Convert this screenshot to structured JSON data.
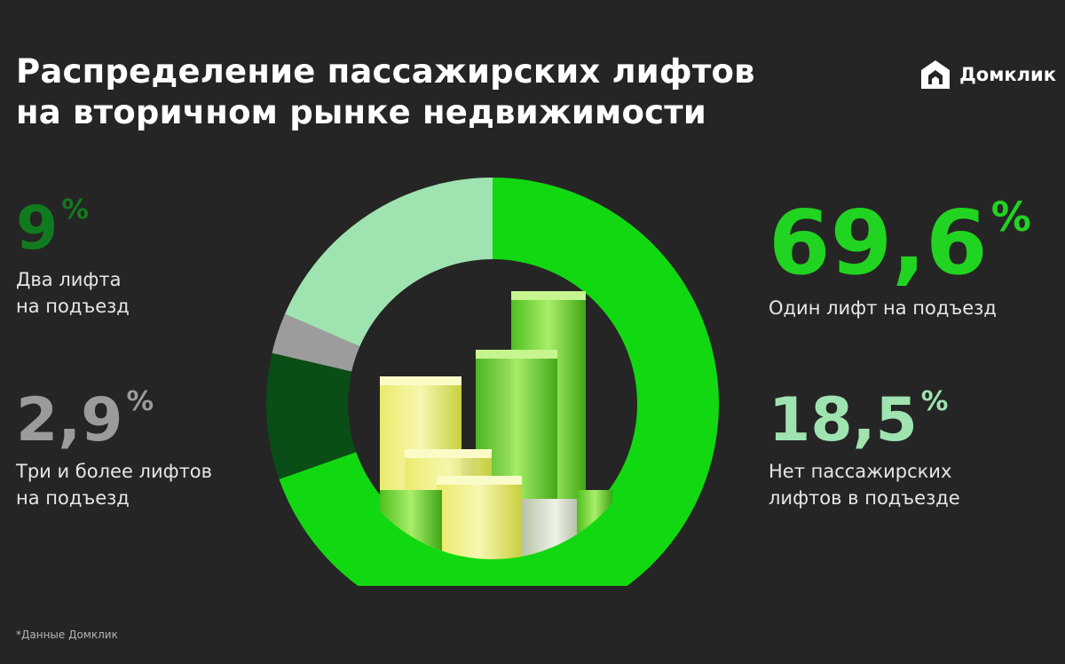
{
  "title_lines": [
    "Распределение пассажирских лифтов",
    "на вторичном рынке недвижимости"
  ],
  "brand": {
    "name": "Домклик",
    "logo_icon": "house-icon",
    "color": "#ffffff"
  },
  "stats": {
    "one": {
      "value": "69,6",
      "unit": "%",
      "label_lines": [
        "Один лифт на подъезд"
      ]
    },
    "none": {
      "value": "18,5",
      "unit": "%",
      "label_lines": [
        "Нет пассажирских",
        "лифтов в подъезде"
      ]
    },
    "two": {
      "value": "9",
      "unit": "%",
      "label_lines": [
        "Два лифта",
        "на подъезд"
      ]
    },
    "three": {
      "value": "2,9",
      "unit": "%",
      "label_lines": [
        "Три и более лифтов",
        "на подъезд"
      ]
    }
  },
  "footnote": "*Данные Домклик",
  "chart_data": {
    "type": "pie",
    "variant": "donut",
    "start": "top",
    "direction": "clockwise",
    "slices": [
      {
        "label": "Один лифт на подъезд",
        "value": 69.6,
        "color": "#12d812"
      },
      {
        "label": "Два лифта на подъезд",
        "value": 9,
        "color": "#0b4d16"
      },
      {
        "label": "Три и более лифтов на подъезд",
        "value": 2.9,
        "color": "#9c9c9c"
      },
      {
        "label": "Нет пассажирских лифтов в подъезде",
        "value": 18.5,
        "color": "#9fe3b0"
      }
    ],
    "center_illustration": "bar-blocks-illustration"
  }
}
